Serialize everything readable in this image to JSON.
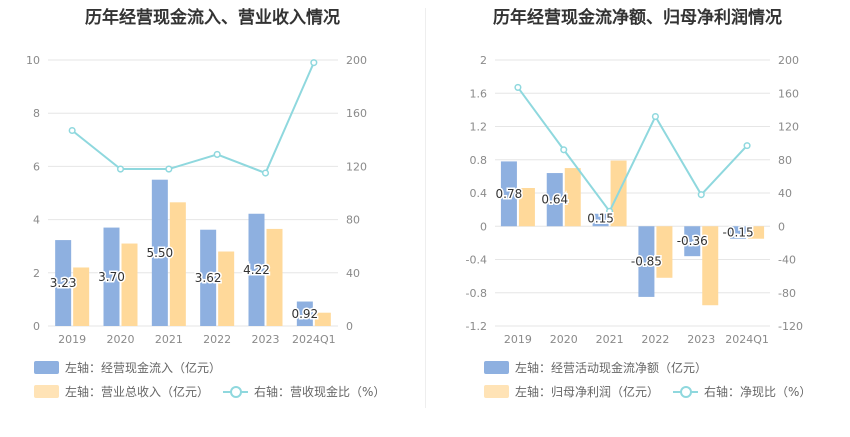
{
  "chart_data": [
    {
      "type": "bar",
      "title": "历年经营现金流入、营业收入情况",
      "categories": [
        "2019",
        "2020",
        "2021",
        "2022",
        "2023",
        "2024Q1"
      ],
      "left_axis": {
        "ticks": [
          "0",
          "2",
          "4",
          "6",
          "8",
          "10"
        ],
        "ylim": [
          0,
          10
        ]
      },
      "right_axis": {
        "ticks": [
          "0",
          "40",
          "80",
          "120",
          "160",
          "200"
        ],
        "ylim": [
          0,
          200
        ]
      },
      "series": [
        {
          "name": "左轴：经营现金流入（亿元）",
          "kind": "bar",
          "axis": "left",
          "color": "#8eb0e0",
          "values": [
            3.23,
            3.7,
            5.5,
            3.62,
            4.22,
            0.92
          ],
          "labels": [
            "3.23",
            "3.70",
            "5.50",
            "3.62",
            "4.22",
            "0.92"
          ]
        },
        {
          "name": "左轴：营业总收入（亿元）",
          "kind": "bar",
          "axis": "left",
          "color": "#ffd99a",
          "values": [
            2.2,
            3.1,
            4.65,
            2.8,
            3.65,
            0.5
          ]
        },
        {
          "name": "右轴：营收现金比（%）",
          "kind": "line",
          "axis": "right",
          "color": "#8fd8de",
          "values": [
            147,
            118,
            118,
            129,
            115,
            198
          ]
        }
      ],
      "legend": "bottom",
      "grid": true
    },
    {
      "type": "bar",
      "title": "历年经营现金流净额、归母净利润情况",
      "categories": [
        "2019",
        "2020",
        "2021",
        "2022",
        "2023",
        "2024Q1"
      ],
      "left_axis": {
        "ticks": [
          "-1.2",
          "-0.8",
          "-0.4",
          "0",
          "0.4",
          "0.8",
          "1.2",
          "1.6",
          "2"
        ],
        "ylim": [
          -1.2,
          2
        ]
      },
      "right_axis": {
        "ticks": [
          "-120",
          "-80",
          "-40",
          "0",
          "40",
          "80",
          "120",
          "160",
          "200"
        ],
        "ylim": [
          -120,
          200
        ]
      },
      "series": [
        {
          "name": "左轴：经营活动现金流净额（亿元）",
          "kind": "bar",
          "axis": "left",
          "color": "#8eb0e0",
          "values": [
            0.78,
            0.64,
            0.15,
            -0.85,
            -0.36,
            -0.15
          ],
          "labels": [
            "0.78",
            "0.64",
            "0.15",
            "-0.85",
            "-0.36",
            "-0.15"
          ]
        },
        {
          "name": "左轴：归母净利润（亿元）",
          "kind": "bar",
          "axis": "left",
          "color": "#ffd99a",
          "values": [
            0.46,
            0.7,
            0.79,
            -0.62,
            -0.95,
            -0.15
          ]
        },
        {
          "name": "右轴：净现比（%）",
          "kind": "line",
          "axis": "right",
          "color": "#8fd8de",
          "values": [
            167,
            92,
            18,
            132,
            38,
            97
          ]
        }
      ],
      "legend": "bottom",
      "grid": true
    }
  ]
}
